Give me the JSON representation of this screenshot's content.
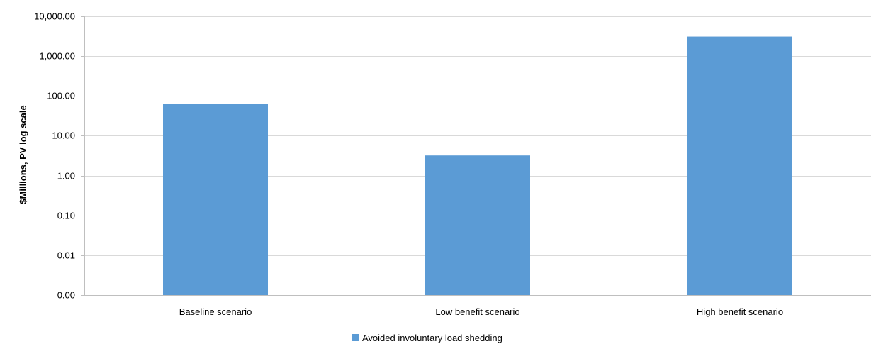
{
  "chart_data": {
    "type": "bar",
    "y_scale": "log",
    "ylabel": "$Millions, PV  log scale",
    "ylim": [
      0.001,
      10000
    ],
    "y_ticks": [
      {
        "value": 0.001,
        "label": "0.00"
      },
      {
        "value": 0.01,
        "label": "0.01"
      },
      {
        "value": 0.1,
        "label": "0.10"
      },
      {
        "value": 1,
        "label": "1.00"
      },
      {
        "value": 10,
        "label": "10.00"
      },
      {
        "value": 100,
        "label": "100.00"
      },
      {
        "value": 1000,
        "label": "1,000.00"
      },
      {
        "value": 10000,
        "label": "10,000.00"
      }
    ],
    "categories": [
      "Baseline scenario",
      "Low benefit scenario",
      "High benefit scenario"
    ],
    "series": [
      {
        "name": "Avoided involuntary load shedding",
        "values": [
          64,
          3.2,
          3100
        ],
        "color": "#5b9bd5"
      }
    ],
    "grid": true,
    "legend_position": "bottom",
    "colors": {
      "bar": "#5b9bd5",
      "grid": "#d9d9d9",
      "axis": "#bfbfbf"
    }
  }
}
